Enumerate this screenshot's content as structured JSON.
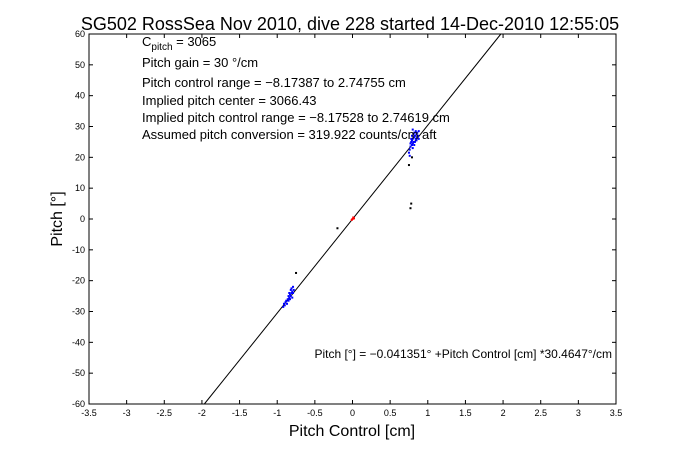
{
  "chart_data": {
    "type": "scatter",
    "title": "SG502 RossSea Nov 2010, dive 228 started 14-Dec-2010 12:55:05",
    "xlabel": "Pitch Control [cm]",
    "ylabel": "Pitch [°]",
    "xlim": [
      -3.5,
      3.5
    ],
    "ylim": [
      -60,
      60
    ],
    "xticks": [
      -3.5,
      -3,
      -2.5,
      -2,
      -1.5,
      -1,
      -0.5,
      0,
      0.5,
      1,
      1.5,
      2,
      2.5,
      3,
      3.5
    ],
    "yticks": [
      -60,
      -50,
      -40,
      -30,
      -20,
      -10,
      0,
      10,
      20,
      30,
      40,
      50,
      60
    ],
    "grid": false,
    "annotations": {
      "c_pitch_base": "C",
      "c_pitch_sub": "pitch",
      "c_pitch_value": " = 3065",
      "line2": "Pitch gain = 30 °/cm",
      "line3": "Pitch control range = −8.17387 to 2.74755 cm",
      "line4": "Implied pitch center = 3066.43",
      "line5": "Implied pitch control range = −8.17528 to 2.74619 cm",
      "line6": "Assumed pitch conversion = 319.922 counts/cm aft"
    },
    "fit_equation": "Pitch [°] = −0.041351° +Pitch Control [cm] *30.4647°/cm",
    "fit_line": {
      "intercept": -0.041351,
      "slope": 30.4647,
      "color": "#000000"
    },
    "series": [
      {
        "color": "#0000ff",
        "points": [
          [
            0.76,
            22.5
          ],
          [
            0.77,
            23.5
          ],
          [
            0.77,
            24.5
          ],
          [
            0.78,
            25.0
          ],
          [
            0.78,
            26.0
          ],
          [
            0.79,
            24.0
          ],
          [
            0.79,
            25.5
          ],
          [
            0.79,
            27.0
          ],
          [
            0.8,
            23.0
          ],
          [
            0.8,
            24.5
          ],
          [
            0.8,
            26.0
          ],
          [
            0.81,
            25.0
          ],
          [
            0.81,
            27.5
          ],
          [
            0.82,
            24.0
          ],
          [
            0.82,
            26.5
          ],
          [
            0.82,
            28.0
          ],
          [
            0.83,
            25.0
          ],
          [
            0.83,
            27.0
          ],
          [
            0.84,
            26.0
          ],
          [
            0.84,
            28.5
          ],
          [
            0.85,
            25.5
          ],
          [
            0.85,
            27.5
          ],
          [
            0.86,
            26.5
          ],
          [
            0.86,
            28.0
          ],
          [
            0.87,
            27.0
          ],
          [
            0.88,
            26.0
          ],
          [
            0.88,
            28.5
          ],
          [
            0.75,
            21.5
          ],
          [
            0.76,
            20.5
          ],
          [
            0.8,
            29.0
          ],
          [
            -0.9,
            -28.0
          ],
          [
            -0.89,
            -27.0
          ],
          [
            -0.88,
            -26.5
          ],
          [
            -0.87,
            -27.5
          ],
          [
            -0.86,
            -26.0
          ],
          [
            -0.85,
            -25.0
          ],
          [
            -0.85,
            -26.5
          ],
          [
            -0.84,
            -24.0
          ],
          [
            -0.84,
            -25.5
          ],
          [
            -0.83,
            -24.5
          ],
          [
            -0.83,
            -26.0
          ],
          [
            -0.82,
            -23.0
          ],
          [
            -0.82,
            -25.0
          ],
          [
            -0.81,
            -24.0
          ],
          [
            -0.81,
            -22.5
          ],
          [
            -0.8,
            -23.5
          ],
          [
            -0.8,
            -25.5
          ],
          [
            -0.79,
            -24.0
          ],
          [
            -0.79,
            -22.0
          ],
          [
            -0.78,
            -23.0
          ],
          [
            -0.92,
            -28.5
          ],
          [
            -0.91,
            -27.5
          ]
        ]
      },
      {
        "color": "#ff0000",
        "points": [
          [
            0.0,
            0.0
          ],
          [
            0.01,
            0.5
          ],
          [
            -0.01,
            -0.3
          ],
          [
            0.02,
            0.2
          ]
        ]
      },
      {
        "color": "#000000",
        "points": [
          [
            0.75,
            17.5
          ],
          [
            0.78,
            5.0
          ],
          [
            0.77,
            3.5
          ],
          [
            -0.2,
            -3.0
          ],
          [
            -0.75,
            -17.5
          ],
          [
            0.79,
            20.0
          ]
        ]
      }
    ]
  }
}
